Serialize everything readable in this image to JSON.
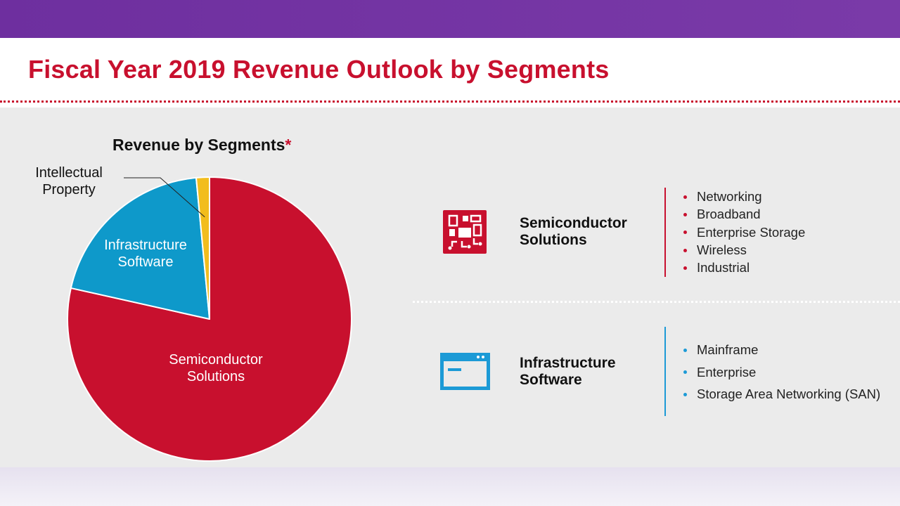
{
  "page": {
    "title": "Fiscal Year 2019 Revenue Outlook by Segments",
    "colors": {
      "brand_red": "#c8102e",
      "brand_purple": "#7030a0",
      "accent_blue": "#1c9ad6"
    }
  },
  "chart_data": {
    "type": "pie",
    "title": "Revenue by Segments",
    "title_marker": "*",
    "slices": [
      {
        "label": "Semiconductor Solutions",
        "label_lines": [
          "Semiconductor",
          "Solutions"
        ],
        "value": 78.5,
        "color": "#c8102e",
        "label_style": "inside"
      },
      {
        "label": "Infrastructure Software",
        "label_lines": [
          "Infrastructure",
          "Software"
        ],
        "value": 20.0,
        "color": "#0e99ca",
        "label_style": "inside"
      },
      {
        "label": "Intellectual Property",
        "label_lines": [
          "Intellectual",
          "Property"
        ],
        "value": 1.5,
        "color": "#f2bd1d",
        "label_style": "outside-leader"
      }
    ]
  },
  "segments": [
    {
      "name_lines": [
        "Semiconductor",
        "Solutions"
      ],
      "icon": "circuit-board-icon",
      "accent": "#c8102e",
      "items": [
        "Networking",
        "Broadband",
        "Enterprise Storage",
        "Wireless",
        "Industrial"
      ]
    },
    {
      "name_lines": [
        "Infrastructure",
        "Software"
      ],
      "icon": "app-window-icon",
      "accent": "#1c9ad6",
      "items": [
        "Mainframe",
        "Enterprise",
        "Storage Area Networking (SAN)"
      ]
    }
  ]
}
